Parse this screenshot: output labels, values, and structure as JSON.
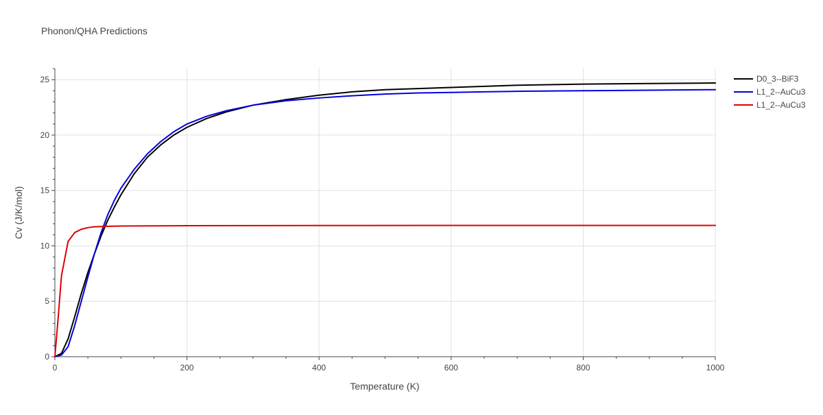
{
  "chart_data": {
    "type": "line",
    "title": "Phonon/QHA Predictions",
    "xlabel": "Temperature (K)",
    "ylabel": "Cv (J/K/mol)",
    "xlim": [
      0,
      1000
    ],
    "ylim": [
      0,
      26
    ],
    "xticks": [
      0,
      200,
      400,
      600,
      800,
      1000
    ],
    "yticks": [
      0,
      5,
      10,
      15,
      20,
      25
    ],
    "x_tick_labels": [
      "0",
      "200",
      "400",
      "600",
      "800",
      "1000"
    ],
    "y_tick_labels": [
      "0",
      "5",
      "10",
      "15",
      "20",
      "25"
    ],
    "grid": true,
    "legend_position": "right",
    "series": [
      {
        "name": "D0_3--BiF3",
        "color": "#000000",
        "points": [
          [
            0,
            0
          ],
          [
            10,
            0.3
          ],
          [
            20,
            1.6
          ],
          [
            30,
            3.6
          ],
          [
            40,
            5.7
          ],
          [
            50,
            7.6
          ],
          [
            60,
            9.3
          ],
          [
            70,
            10.9
          ],
          [
            80,
            12.3
          ],
          [
            90,
            13.5
          ],
          [
            100,
            14.6
          ],
          [
            120,
            16.5
          ],
          [
            140,
            18.0
          ],
          [
            160,
            19.1
          ],
          [
            180,
            20.0
          ],
          [
            200,
            20.7
          ],
          [
            230,
            21.5
          ],
          [
            260,
            22.1
          ],
          [
            300,
            22.7
          ],
          [
            350,
            23.2
          ],
          [
            400,
            23.6
          ],
          [
            450,
            23.9
          ],
          [
            500,
            24.1
          ],
          [
            550,
            24.2
          ],
          [
            600,
            24.3
          ],
          [
            650,
            24.4
          ],
          [
            700,
            24.5
          ],
          [
            800,
            24.6
          ],
          [
            900,
            24.65
          ],
          [
            1000,
            24.7
          ]
        ]
      },
      {
        "name": "L1_2--AuCu3",
        "color": "#0000dd",
        "points": [
          [
            0,
            0
          ],
          [
            10,
            0.15
          ],
          [
            20,
            0.9
          ],
          [
            30,
            2.8
          ],
          [
            40,
            5.0
          ],
          [
            50,
            7.2
          ],
          [
            60,
            9.3
          ],
          [
            70,
            11.2
          ],
          [
            80,
            12.8
          ],
          [
            90,
            14.1
          ],
          [
            100,
            15.2
          ],
          [
            120,
            16.9
          ],
          [
            140,
            18.3
          ],
          [
            160,
            19.4
          ],
          [
            180,
            20.3
          ],
          [
            200,
            21.0
          ],
          [
            230,
            21.7
          ],
          [
            260,
            22.2
          ],
          [
            300,
            22.7
          ],
          [
            350,
            23.1
          ],
          [
            400,
            23.35
          ],
          [
            450,
            23.55
          ],
          [
            500,
            23.7
          ],
          [
            550,
            23.8
          ],
          [
            600,
            23.85
          ],
          [
            650,
            23.9
          ],
          [
            700,
            23.95
          ],
          [
            800,
            24.0
          ],
          [
            900,
            24.05
          ],
          [
            1000,
            24.1
          ]
        ]
      },
      {
        "name": "L1_2--AuCu3",
        "color": "#dd0000",
        "points": [
          [
            0,
            0
          ],
          [
            5,
            3.5
          ],
          [
            10,
            7.3
          ],
          [
            20,
            10.4
          ],
          [
            30,
            11.2
          ],
          [
            40,
            11.5
          ],
          [
            50,
            11.65
          ],
          [
            60,
            11.72
          ],
          [
            80,
            11.77
          ],
          [
            100,
            11.79
          ],
          [
            150,
            11.81
          ],
          [
            200,
            11.82
          ],
          [
            300,
            11.83
          ],
          [
            400,
            11.84
          ],
          [
            600,
            11.85
          ],
          [
            800,
            11.85
          ],
          [
            1000,
            11.85
          ]
        ]
      }
    ]
  }
}
